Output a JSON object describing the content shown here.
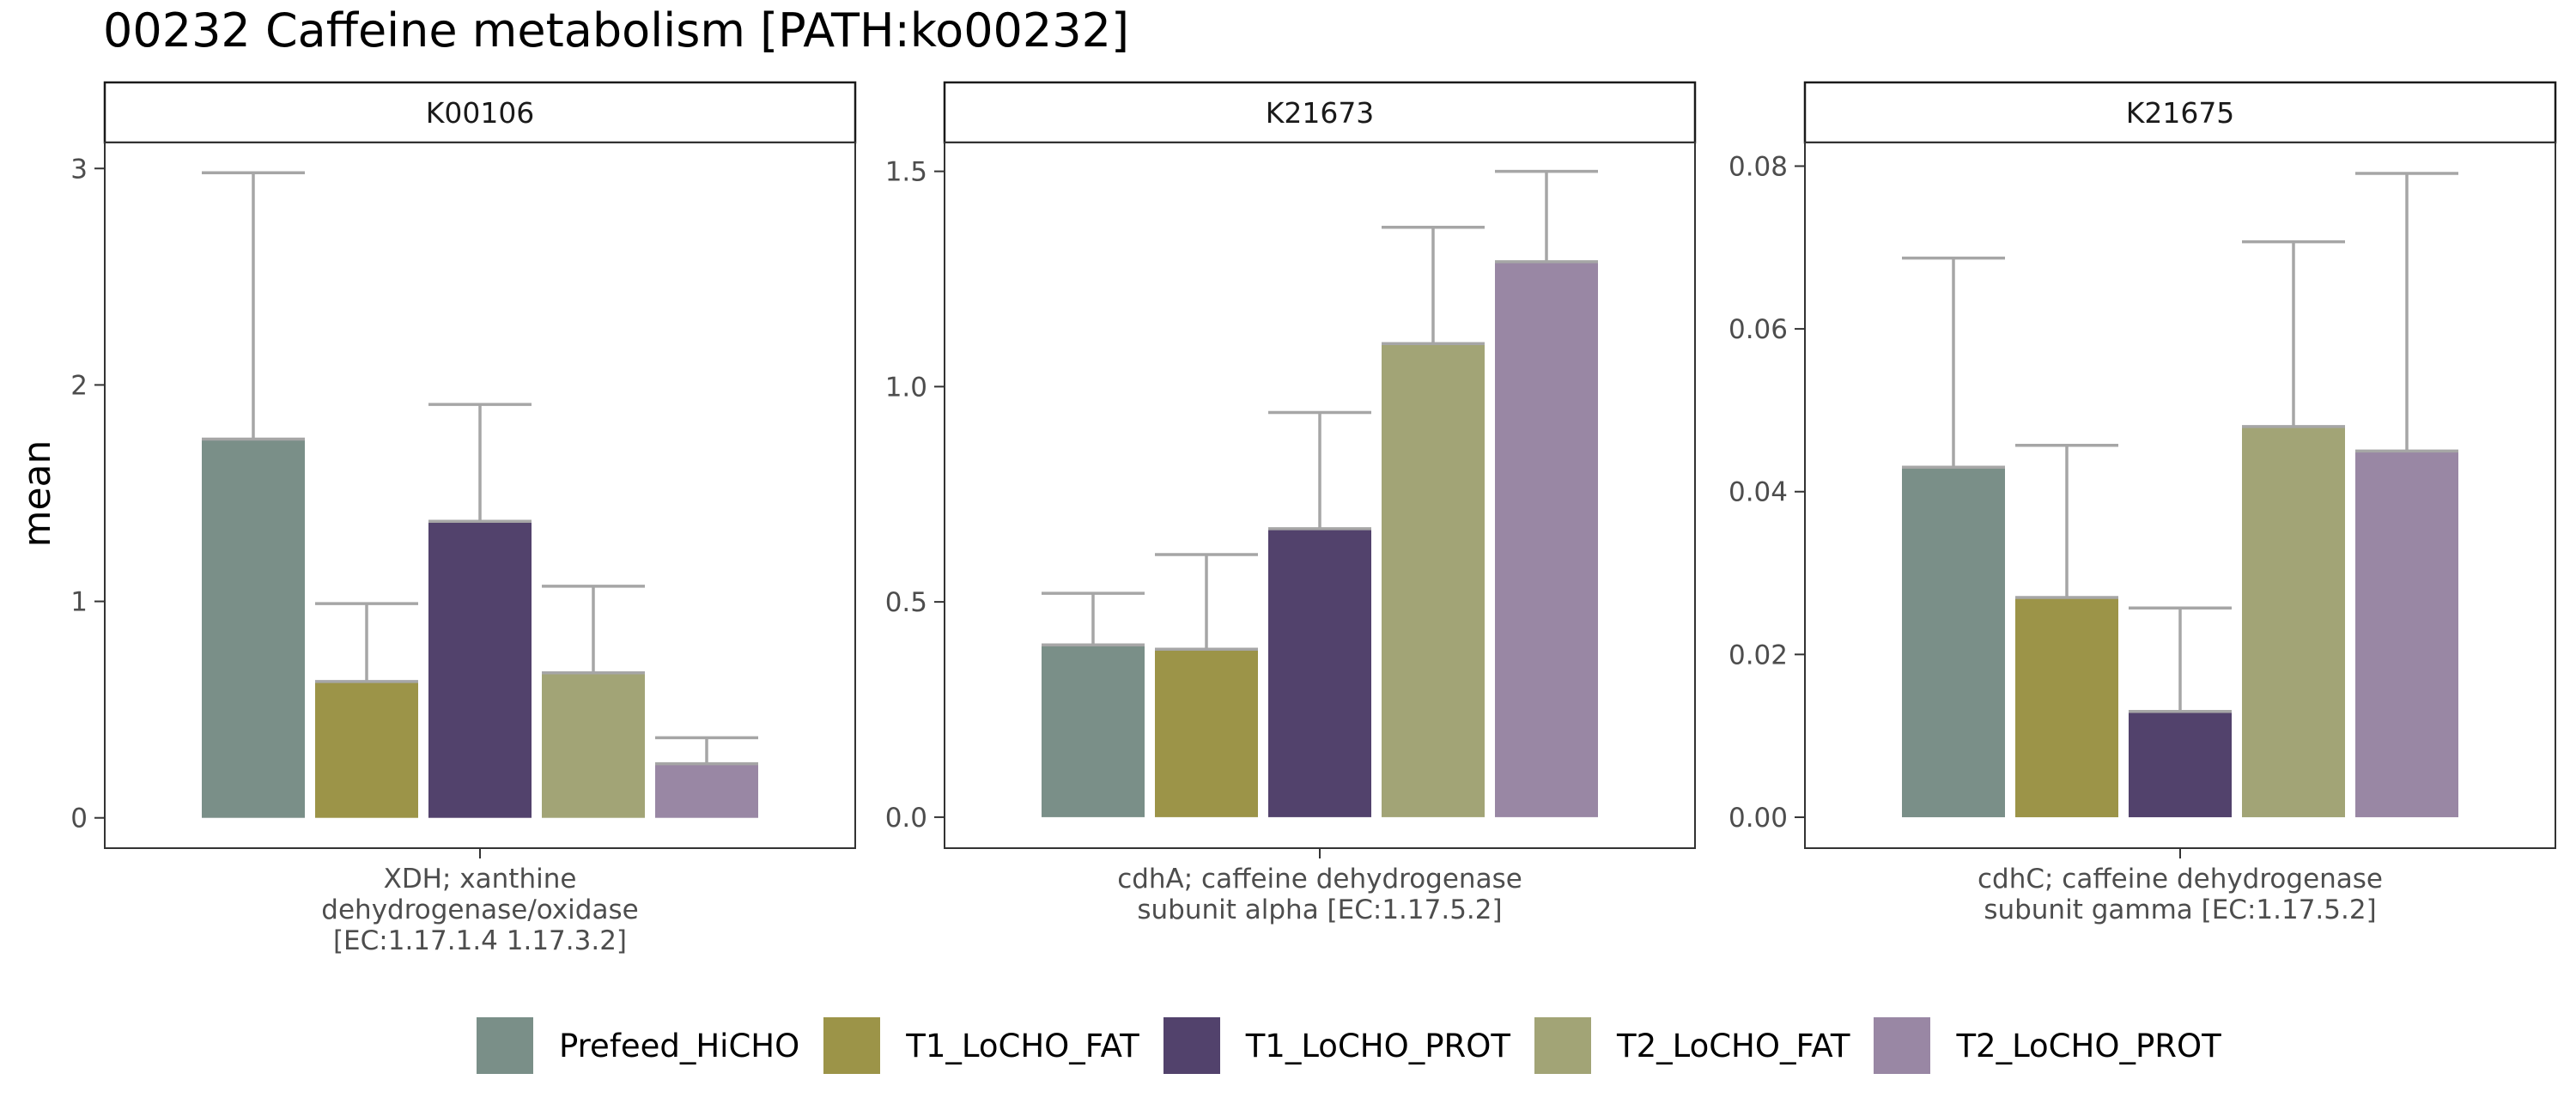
{
  "chart_title": "00232 Caffeine metabolism [PATH:ko00232]",
  "colors": {
    "Prefeed_HiCHO": "#7a8f88",
    "T1_LoCHO_FAT": "#9c9448",
    "T1_LoCHO_PROT": "#52426c",
    "T2_LoCHO_FAT": "#a2a476",
    "T2_LoCHO_PROT": "#9987a4",
    "errorbar": "#a6a6a6",
    "axis_text": "#4d4d4d"
  },
  "chart_data": [
    {
      "type": "bar",
      "title": "",
      "facet_label": "K00106",
      "x_label_lines": [
        "XDH; xanthine",
        "dehydrogenase/oxidase",
        "[EC:1.17.1.4 1.17.3.2]"
      ],
      "ylabel": "mean",
      "ylim": [
        -0.14,
        3.12
      ],
      "yticks": [
        0,
        1,
        2,
        3
      ],
      "ytick_labels": [
        "0",
        "1",
        "2",
        "3"
      ],
      "categories": [
        "Prefeed_HiCHO",
        "T1_LoCHO_FAT",
        "T1_LoCHO_PROT",
        "T2_LoCHO_FAT",
        "T2_LoCHO_PROT"
      ],
      "values": [
        1.75,
        0.63,
        1.37,
        0.67,
        0.25
      ],
      "error_upper": [
        2.98,
        0.99,
        1.91,
        1.07,
        0.37
      ]
    },
    {
      "type": "bar",
      "title": "",
      "facet_label": "K21673",
      "x_label_lines": [
        "cdhA; caffeine dehydrogenase",
        "subunit alpha [EC:1.17.5.2]"
      ],
      "ylabel": "",
      "ylim": [
        -0.072,
        1.567
      ],
      "yticks": [
        0,
        0.5,
        1.0,
        1.5
      ],
      "ytick_labels": [
        "0.0",
        "0.5",
        "1.0",
        "1.5"
      ],
      "categories": [
        "Prefeed_HiCHO",
        "T1_LoCHO_FAT",
        "T1_LoCHO_PROT",
        "T2_LoCHO_FAT",
        "T2_LoCHO_PROT"
      ],
      "values": [
        0.4,
        0.39,
        0.67,
        1.1,
        1.29
      ],
      "error_upper": [
        0.52,
        0.61,
        0.94,
        1.37,
        1.5
      ]
    },
    {
      "type": "bar",
      "title": "",
      "facet_label": "K21675",
      "x_label_lines": [
        "cdhC; caffeine dehydrogenase",
        "subunit gamma [EC:1.17.5.2]"
      ],
      "ylabel": "",
      "ylim": [
        -0.0038,
        0.0829
      ],
      "yticks": [
        0,
        0.02,
        0.04,
        0.06,
        0.08
      ],
      "ytick_labels": [
        "0.00",
        "0.02",
        "0.04",
        "0.06",
        "0.08"
      ],
      "categories": [
        "Prefeed_HiCHO",
        "T1_LoCHO_FAT",
        "T1_LoCHO_PROT",
        "T2_LoCHO_FAT",
        "T2_LoCHO_PROT"
      ],
      "values": [
        0.043,
        0.027,
        0.013,
        0.048,
        0.045
      ],
      "error_upper": [
        0.0687,
        0.0457,
        0.0257,
        0.0707,
        0.0791
      ]
    }
  ],
  "legend": {
    "entries": [
      "Prefeed_HiCHO",
      "T1_LoCHO_FAT",
      "T1_LoCHO_PROT",
      "T2_LoCHO_FAT",
      "T2_LoCHO_PROT"
    ]
  }
}
